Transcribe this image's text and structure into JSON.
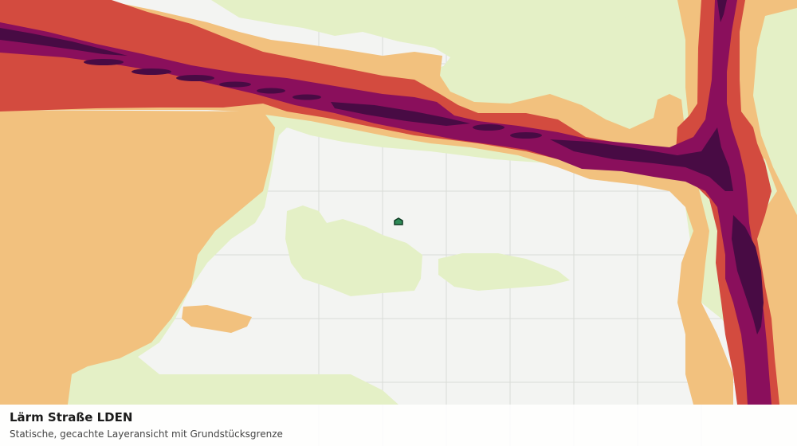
{
  "map": {
    "title": "Lärm Straße LDEN",
    "subtitle": "Statische, gecachte Layeransicht mit Grundstücksgrenze",
    "colors": {
      "background": "#f3f4f2",
      "grid": "#dadcd8",
      "noise_band_1": "#e4f0c6",
      "noise_band_2": "#f2c17e",
      "noise_band_3": "#d34b3f",
      "noise_band_4": "#8a0f5c",
      "noise_band_5": "#480b44",
      "parcel_fill": "#2f8a57",
      "parcel_outline": "#0d3a22"
    }
  }
}
